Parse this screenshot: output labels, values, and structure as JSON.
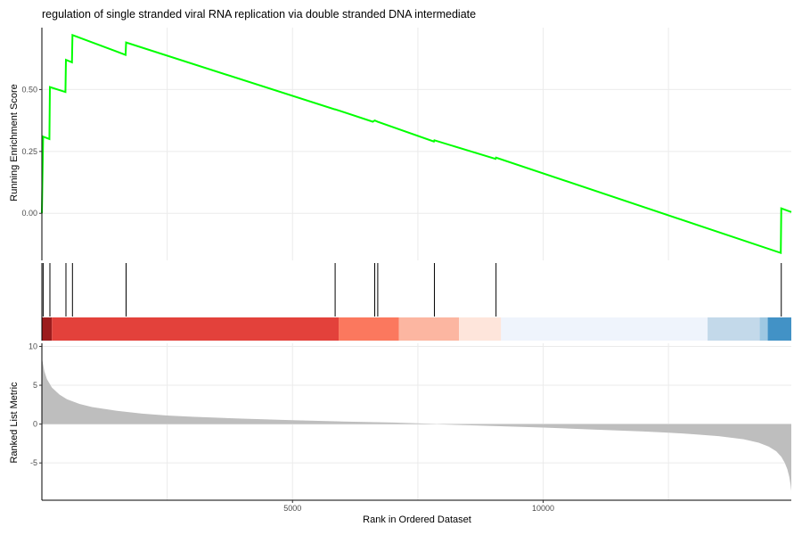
{
  "chart_data": {
    "type": "line",
    "title": "regulation of single stranded viral RNA replication via double stranded DNA intermediate",
    "xlabel": "Rank in Ordered Dataset",
    "xlim": [
      0,
      14950
    ],
    "x_ticks": [
      5000,
      10000
    ],
    "grid": true,
    "panels": [
      {
        "name": "running-enrichment",
        "ylabel": "Running Enrichment Score",
        "ylim": [
          -0.19,
          0.75
        ],
        "y_ticks": [
          0.0,
          0.25,
          0.5
        ],
        "line_color": "#00ff00",
        "points": [
          [
            0,
            0.0
          ],
          [
            25,
            0.31
          ],
          [
            150,
            0.3
          ],
          [
            160,
            0.51
          ],
          [
            470,
            0.49
          ],
          [
            480,
            0.62
          ],
          [
            600,
            0.61
          ],
          [
            610,
            0.72
          ],
          [
            1670,
            0.64
          ],
          [
            1680,
            0.69
          ],
          [
            5840,
            0.42
          ],
          [
            5850,
            0.42
          ],
          [
            5930,
            0.415
          ],
          [
            6600,
            0.37
          ],
          [
            6640,
            0.375
          ],
          [
            6700,
            0.37
          ],
          [
            7820,
            0.29
          ],
          [
            7830,
            0.295
          ],
          [
            9050,
            0.22
          ],
          [
            9060,
            0.225
          ],
          [
            14740,
            -0.16
          ],
          [
            14750,
            0.02
          ],
          [
            14950,
            0.005
          ]
        ]
      },
      {
        "name": "gene-hits",
        "hits": [
          25,
          160,
          480,
          610,
          1680,
          5850,
          6640,
          6700,
          7830,
          9060,
          14750
        ],
        "color_bands": [
          {
            "x0": 0,
            "x1": 200,
            "color": "#9c1c1d"
          },
          {
            "x0": 200,
            "x1": 5920,
            "color": "#e3413b"
          },
          {
            "x0": 5920,
            "x1": 7120,
            "color": "#fb785e"
          },
          {
            "x0": 7120,
            "x1": 8320,
            "color": "#fcb6a1"
          },
          {
            "x0": 8320,
            "x1": 9160,
            "color": "#fee5db"
          },
          {
            "x0": 9160,
            "x1": 13280,
            "color": "#eff4fc"
          },
          {
            "x0": 13280,
            "x1": 14320,
            "color": "#c3d9ea"
          },
          {
            "x0": 14320,
            "x1": 14480,
            "color": "#9ec8e2"
          },
          {
            "x0": 14480,
            "x1": 14950,
            "color": "#4292c6"
          }
        ]
      },
      {
        "name": "ranked-list-metric",
        "ylabel": "Ranked List Metric",
        "ylim": [
          -9.8,
          10.4
        ],
        "y_ticks": [
          -5,
          0,
          5,
          10
        ],
        "fill_color": "#bebebe",
        "points": [
          [
            0,
            8.5
          ],
          [
            50,
            6.8
          ],
          [
            100,
            5.8
          ],
          [
            200,
            4.7
          ],
          [
            350,
            3.8
          ],
          [
            500,
            3.2
          ],
          [
            750,
            2.6
          ],
          [
            1000,
            2.2
          ],
          [
            1500,
            1.7
          ],
          [
            2000,
            1.35
          ],
          [
            2500,
            1.1
          ],
          [
            3000,
            0.95
          ],
          [
            4000,
            0.7
          ],
          [
            5000,
            0.5
          ],
          [
            6000,
            0.33
          ],
          [
            7000,
            0.2
          ],
          [
            7500,
            0.1
          ],
          [
            7800,
            0.03
          ],
          [
            8000,
            -0.05
          ],
          [
            8500,
            -0.15
          ],
          [
            9000,
            -0.25
          ],
          [
            10000,
            -0.45
          ],
          [
            11000,
            -0.7
          ],
          [
            12000,
            -0.95
          ],
          [
            12500,
            -1.1
          ],
          [
            13000,
            -1.3
          ],
          [
            13500,
            -1.55
          ],
          [
            14000,
            -1.95
          ],
          [
            14300,
            -2.4
          ],
          [
            14500,
            -2.9
          ],
          [
            14650,
            -3.5
          ],
          [
            14750,
            -4.2
          ],
          [
            14820,
            -5.0
          ],
          [
            14870,
            -5.8
          ],
          [
            14910,
            -6.8
          ],
          [
            14935,
            -7.8
          ],
          [
            14950,
            -8.6
          ]
        ]
      }
    ]
  }
}
